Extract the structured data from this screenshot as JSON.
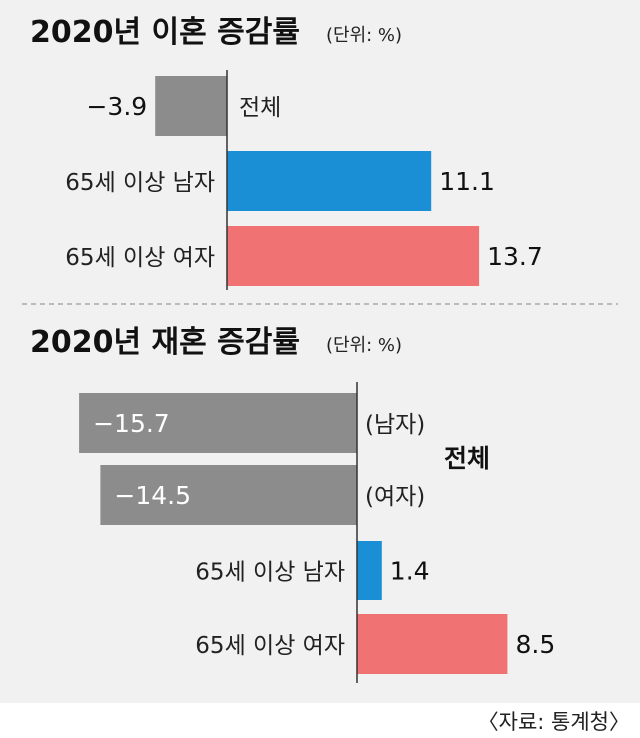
{
  "chart_data": [
    {
      "type": "bar",
      "orientation": "horizontal",
      "title": "2020년 이혼 증감률",
      "unit": "(단위: %)",
      "categories": [
        "전체",
        "65세 이상 남자",
        "65세 이상 여자"
      ],
      "values": [
        -3.9,
        11.1,
        13.7
      ],
      "value_labels": [
        "−3.9",
        "11.1",
        "13.7"
      ],
      "colors": [
        "#8c8c8c",
        "#1a8fd6",
        "#f07272"
      ]
    },
    {
      "type": "bar",
      "orientation": "horizontal",
      "title": "2020년 재혼 증감률",
      "unit": "(단위: %)",
      "group_label": "전체",
      "categories": [
        "(남자)",
        "(여자)",
        "65세 이상 남자",
        "65세 이상 여자"
      ],
      "values": [
        -15.7,
        -14.5,
        1.4,
        8.5
      ],
      "value_labels": [
        "−15.7",
        "−14.5",
        "1.4",
        "8.5"
      ],
      "colors": [
        "#8c8c8c",
        "#8c8c8c",
        "#1a8fd6",
        "#f07272"
      ]
    }
  ],
  "source": "〈자료: 통계청〉"
}
